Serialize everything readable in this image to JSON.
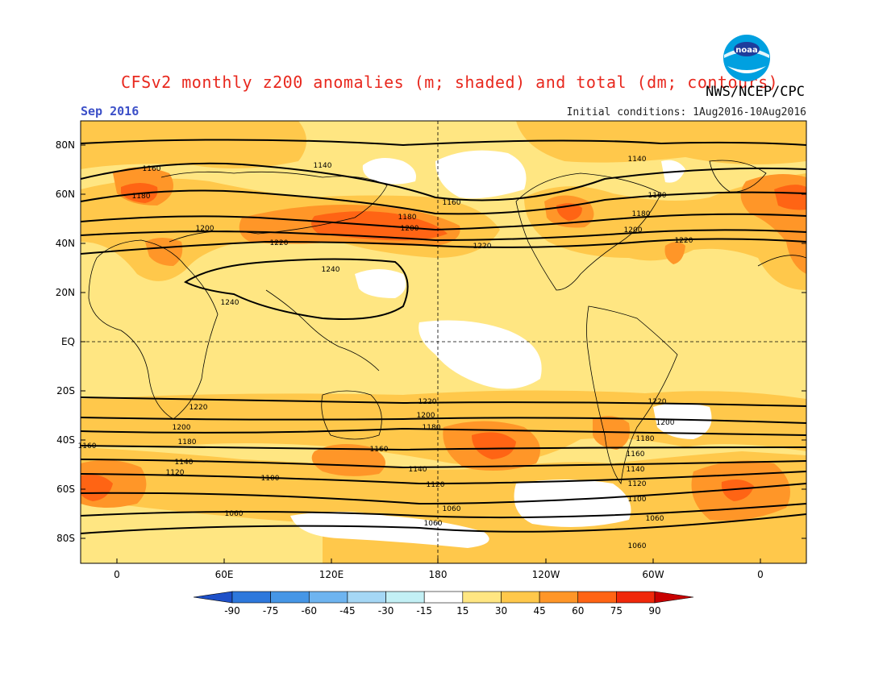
{
  "title": "CFSv2 monthly z200 anomalies (m; shaded) and total (dm; contours)",
  "organization": "NWS/NCEP/CPC",
  "month_label": "Sep 2016",
  "initial_conditions": "Initial conditions: 1Aug2016-10Aug2016",
  "logo": {
    "icon": "noaa-logo",
    "text": "noaa"
  },
  "lat_ticks": [
    "80N",
    "60N",
    "40N",
    "20N",
    "EQ",
    "20S",
    "40S",
    "60S",
    "80S"
  ],
  "lon_ticks": [
    "0",
    "60E",
    "120E",
    "180",
    "120W",
    "60W",
    "0"
  ],
  "colorbar": {
    "labels": [
      "-90",
      "-75",
      "-60",
      "-45",
      "-30",
      "-15",
      "15",
      "30",
      "45",
      "60",
      "75",
      "90"
    ],
    "colors": [
      "#1e50c8",
      "#2d78dc",
      "#4696e6",
      "#6eb4f0",
      "#a5d7f5",
      "#c3f0f5",
      "#ffffff",
      "#ffe682",
      "#ffc84b",
      "#ff9628",
      "#ff6414",
      "#f0280a",
      "#c80000"
    ]
  },
  "contour_labels": [
    "1060",
    "1100",
    "1120",
    "1140",
    "1160",
    "1180",
    "1200",
    "1220",
    "1240"
  ]
}
